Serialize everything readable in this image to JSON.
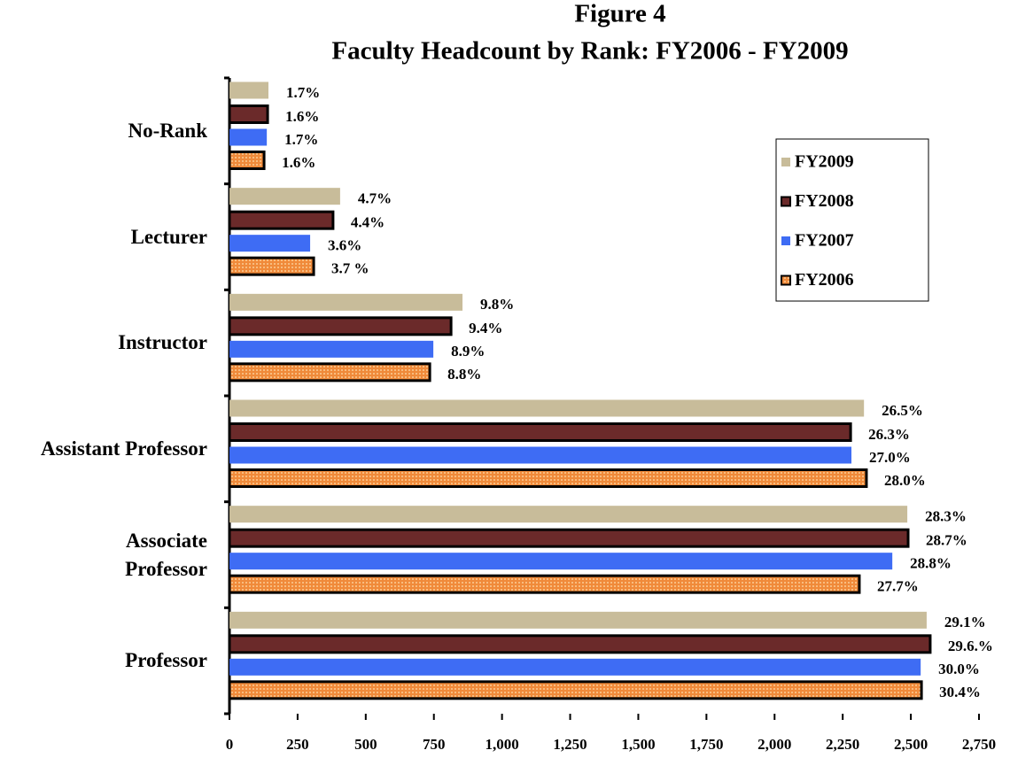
{
  "chart_data": {
    "type": "hbar",
    "title": "Figure 4",
    "subtitle": "Faculty Headcount by Rank: FY2006  - FY2009",
    "categories": [
      "No-Rank",
      "Lecturer",
      "Instructor",
      "Assistant Professor",
      "Associate\nProfessor",
      "Professor"
    ],
    "series": [
      {
        "name": "FY2009",
        "color": "#c8bc9a",
        "border": false,
        "pattern": false,
        "values": [
          143,
          406,
          855,
          2328,
          2487,
          2558
        ],
        "labels": [
          "1.7%",
          "4.7%",
          "9.8%",
          "26.5%",
          "28.3%",
          "29.1%"
        ]
      },
      {
        "name": "FY2008",
        "color": "#6b2a2a",
        "border": true,
        "pattern": false,
        "values": [
          140,
          380,
          813,
          2279,
          2490,
          2571
        ],
        "labels": [
          "1.6%",
          "4.4%",
          "9.4%",
          "26.3%",
          "28.7%",
          "29.6.%"
        ]
      },
      {
        "name": "FY2007",
        "color": "#3e6cf4",
        "border": false,
        "pattern": false,
        "values": [
          137,
          296,
          748,
          2282,
          2432,
          2536
        ],
        "labels": [
          "1.7%",
          "3.6%",
          "8.9%",
          "27.0%",
          "28.8%",
          "30.0%"
        ]
      },
      {
        "name": "FY2006",
        "color": "#f08a3a",
        "border": true,
        "pattern": true,
        "values": [
          127,
          309,
          735,
          2337,
          2311,
          2539
        ],
        "labels": [
          "1.6%",
          "3.7 %",
          "8.8%",
          "28.0%",
          "27.7%",
          "30.4%"
        ]
      }
    ],
    "xlim": [
      0,
      2750
    ],
    "xticks": [
      0,
      250,
      500,
      750,
      {
        "value": 1000,
        "label": "1,000"
      },
      {
        "value": 1250,
        "label": "1,250"
      },
      {
        "value": 1500,
        "label": "1,500"
      },
      {
        "value": 1750,
        "label": "1,750"
      },
      {
        "value": 2000,
        "label": "2,000"
      },
      {
        "value": 2250,
        "label": "2,250"
      },
      {
        "value": 2500,
        "label": "2,500"
      },
      {
        "value": 2750,
        "label": "2,750"
      }
    ],
    "legend": "upper right"
  }
}
